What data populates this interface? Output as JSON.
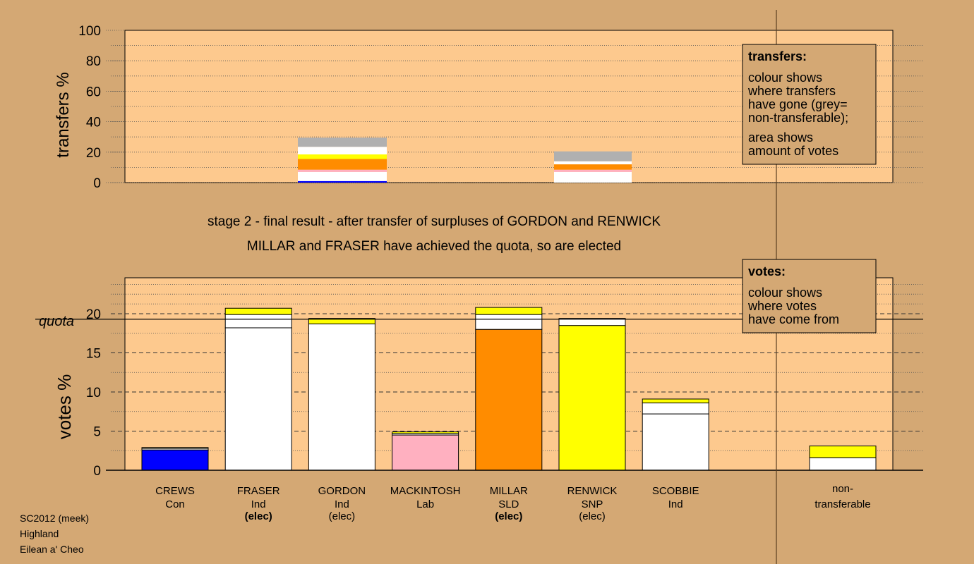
{
  "colors": {
    "background": "#d4a874",
    "panel": "#fdc98e",
    "legend_box": "#d4a874",
    "Con": "#0000ff",
    "Ind": "#ffffff",
    "Lab": "#ffb0c0",
    "SLD": "#ff8c00",
    "SNP": "#ffff00",
    "non_transferable": "#b0b0b0"
  },
  "chart_data": [
    {
      "type": "bar",
      "name": "transfers",
      "ylabel": "transfers %",
      "ylim": [
        0,
        100
      ],
      "yticks": [
        0,
        20,
        40,
        60,
        80,
        100
      ],
      "grid": true,
      "columns": [
        {
          "position": "GORDON",
          "segments": [
            {
              "party": "Con",
              "value": 1.0
            },
            {
              "party": "Ind",
              "value": 6.0
            },
            {
              "party": "Lab",
              "value": 1.5
            },
            {
              "party": "SLD",
              "value": 7.0
            },
            {
              "party": "SNP",
              "value": 3.0
            },
            {
              "party": "Ind",
              "value": 5.0
            },
            {
              "party": "non_transferable",
              "value": 6.0
            }
          ]
        },
        {
          "position": "RENWICK",
          "segments": [
            {
              "party": "Ind",
              "value": 7.0
            },
            {
              "party": "Lab",
              "value": 1.5
            },
            {
              "party": "SLD",
              "value": 3.5
            },
            {
              "party": "Ind",
              "value": 2.0
            },
            {
              "party": "non_transferable",
              "value": 6.5
            }
          ]
        }
      ],
      "legend": {
        "placement": "top-right",
        "title": "transfers:",
        "lines": [
          "colour shows",
          "where transfers",
          "have gone (grey=",
          "non-transferable);"
        ],
        "lines2": [
          "area shows",
          "amount of votes"
        ]
      }
    },
    {
      "type": "bar",
      "name": "votes",
      "ylabel": "votes %",
      "ylim": [
        0,
        25
      ],
      "yticks": [
        0,
        5,
        10,
        15,
        20
      ],
      "quota": 19.3,
      "quota_label": "quota",
      "grid": true,
      "categories": [
        {
          "name": "CREWS",
          "party": "Con",
          "status": ""
        },
        {
          "name": "FRASER",
          "party": "Ind",
          "status": "(elec)"
        },
        {
          "name": "GORDON",
          "party": "Ind",
          "status": "(elec)"
        },
        {
          "name": "MACKINTOSH",
          "party": "Lab",
          "status": ""
        },
        {
          "name": "MILLAR",
          "party": "SLD",
          "status": "(elec)"
        },
        {
          "name": "RENWICK",
          "party": "SNP",
          "status": "(elec)"
        },
        {
          "name": "SCOBBIE",
          "party": "Ind",
          "status": ""
        }
      ],
      "bars": [
        [
          {
            "party": "Con",
            "value": 2.6
          },
          {
            "party": "Ind",
            "value": 0.2
          },
          {
            "party": "SNP",
            "value": 0.1
          }
        ],
        [
          {
            "party": "Ind",
            "value": 18.2
          },
          {
            "party": "Ind",
            "value": 1.7
          },
          {
            "party": "SNP",
            "value": 0.8
          }
        ],
        [
          {
            "party": "Ind",
            "value": 18.7
          },
          {
            "party": "SNP",
            "value": 0.7
          }
        ],
        [
          {
            "party": "Lab",
            "value": 4.5
          },
          {
            "party": "Ind",
            "value": 0.2
          },
          {
            "party": "SNP",
            "value": 0.2
          }
        ],
        [
          {
            "party": "SLD",
            "value": 18.0
          },
          {
            "party": "Ind",
            "value": 1.9
          },
          {
            "party": "SNP",
            "value": 0.9
          }
        ],
        [
          {
            "party": "SNP",
            "value": 18.5
          },
          {
            "party": "Ind",
            "value": 0.9
          }
        ],
        [
          {
            "party": "Ind",
            "value": 7.2
          },
          {
            "party": "Ind",
            "value": 1.4
          },
          {
            "party": "SNP",
            "value": 0.5
          }
        ]
      ],
      "non_transferable": {
        "label_line1": "non-",
        "label_line2": "transferable",
        "segments": [
          {
            "party": "Ind",
            "value": 1.6
          },
          {
            "party": "SNP",
            "value": 1.5
          }
        ]
      },
      "legend": {
        "placement": "top-right",
        "title": "votes:",
        "lines": [
          "colour shows",
          "where votes",
          "have come from"
        ]
      }
    }
  ],
  "caption": {
    "line1": "stage 2 - final result - after transfer of surpluses of GORDON and RENWICK",
    "line2": "MILLAR and FRASER have achieved the quota, so are elected"
  },
  "footer": {
    "line1": "SC2012 (meek)",
    "line2": "Highland",
    "line3": "Eilean a' Cheo"
  }
}
